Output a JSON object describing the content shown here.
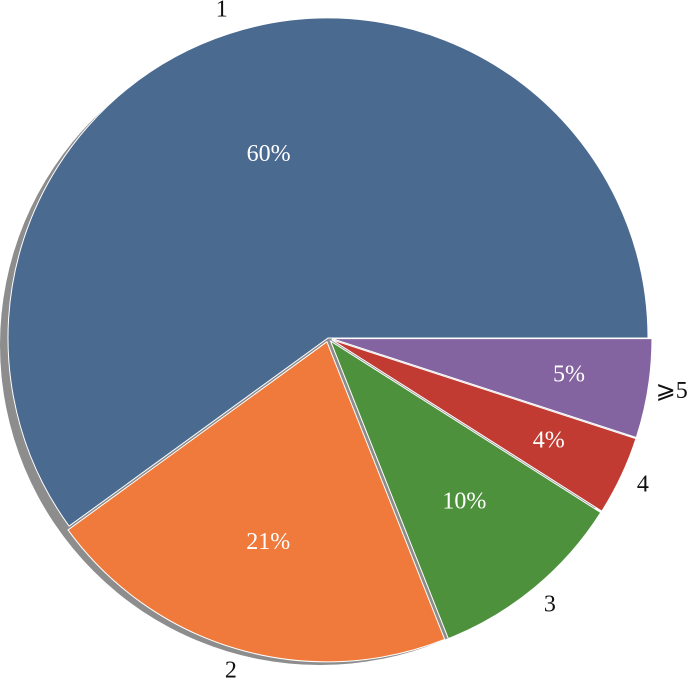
{
  "chart_data": {
    "type": "pie",
    "categories": [
      "1",
      "2",
      "3",
      "4",
      "⩾5"
    ],
    "values": [
      60,
      21,
      10,
      4,
      5
    ],
    "value_labels": [
      "60%",
      "21%",
      "10%",
      "4%",
      "5%"
    ],
    "colors": [
      "#4a6a90",
      "#ef7a3b",
      "#4e913d",
      "#c23b33",
      "#8463a1"
    ]
  }
}
